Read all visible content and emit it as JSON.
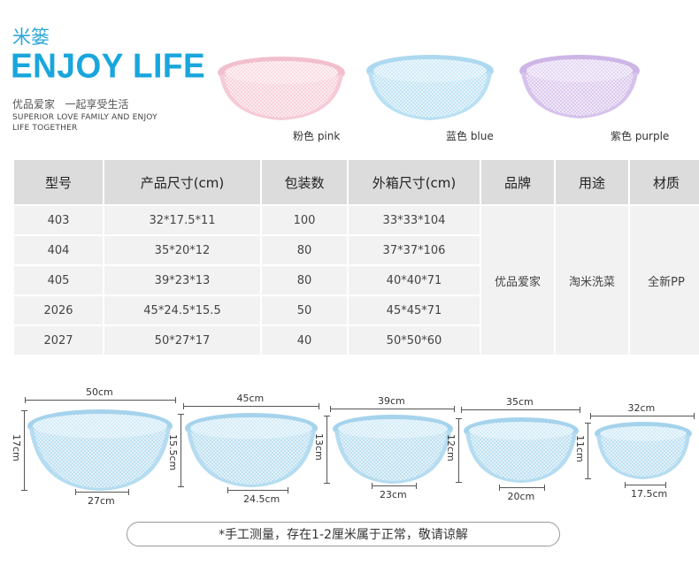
{
  "header": {
    "category": "米篓",
    "title": "ENJOY LIFE",
    "slogan_cn": "优品爱家   一起享受生活",
    "slogan_en_line1": "SUPERIOR LOVE FAMILY AND ENJOY",
    "slogan_en_line2": "LIFE TOGETHER"
  },
  "colors": {
    "items": [
      {
        "label": "粉色 pink",
        "hex": "#f4c7d3"
      },
      {
        "label": "蓝色 blue",
        "hex": "#b9e1f2"
      },
      {
        "label": "紫色 purple",
        "hex": "#d5c1ea"
      }
    ]
  },
  "table": {
    "headers": [
      "型号",
      "产品尺寸(cm)",
      "包装数",
      "外箱尺寸(cm)",
      "品牌",
      "用途",
      "材质"
    ],
    "rows": [
      [
        "403",
        "32*17.5*11",
        "100",
        "33*33*104"
      ],
      [
        "404",
        "35*20*12",
        "80",
        "37*37*106"
      ],
      [
        "405",
        "39*23*13",
        "80",
        "40*40*71"
      ],
      [
        "2026",
        "45*24.5*15.5",
        "50",
        "45*45*71"
      ],
      [
        "2027",
        "50*27*17",
        "40",
        "50*50*60"
      ]
    ],
    "brand": "优品爱家",
    "usage": "淘米洗菜",
    "material": "全新PP"
  },
  "sizes": [
    {
      "width": "50cm",
      "height": "17cm",
      "base": "27cm"
    },
    {
      "width": "45cm",
      "height": "15.5cm",
      "base": "24.5cm"
    },
    {
      "width": "39cm",
      "height": "13cm",
      "base": "23cm"
    },
    {
      "width": "35cm",
      "height": "12cm",
      "base": "20cm"
    },
    {
      "width": "32cm",
      "height": "11cm",
      "base": "17.5cm"
    }
  ],
  "note": "*手工测量，存在1-2厘米属于正常，敬请谅解",
  "bowl_color": "#b5dcf0"
}
